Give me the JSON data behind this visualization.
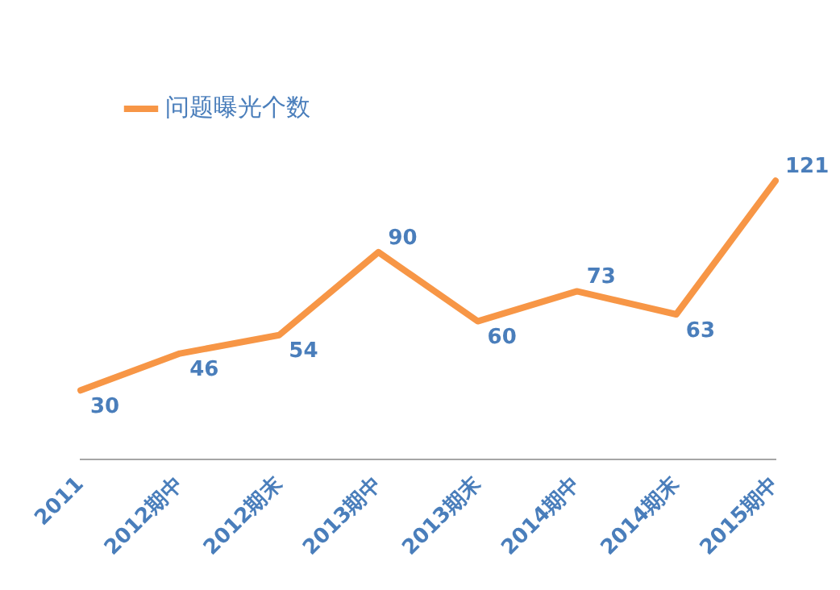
{
  "chart_data": {
    "type": "line",
    "categories": [
      "2011",
      "2012期中",
      "2012期末",
      "2013期中",
      "2013期末",
      "2014期中",
      "2014期末",
      "2015期中"
    ],
    "series": [
      {
        "name": "问题曝光个数",
        "color": "#f79646",
        "values": [
          30,
          46,
          54,
          90,
          60,
          73,
          63,
          121
        ]
      }
    ],
    "data_labels": true,
    "legend": "top left",
    "grid": false,
    "marker": "none",
    "line_style": "solid"
  }
}
